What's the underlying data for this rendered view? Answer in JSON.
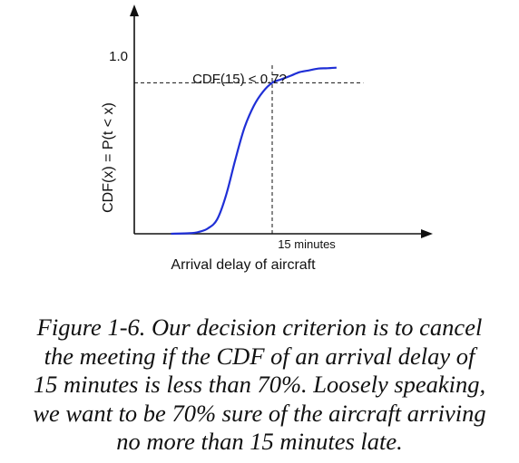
{
  "chart_data": {
    "type": "line",
    "title": "",
    "xlabel": "Arrival delay of aircraft",
    "ylabel": "CDF(x) = P(t < x)",
    "y_tick_label": "1.0",
    "x_tick_label": "15 minutes",
    "annotation": "CDF(15) < 0.7?",
    "ylim": [
      0,
      1.0
    ],
    "xlim": [
      0,
      30
    ],
    "threshold": {
      "x": 15,
      "y": 0.85
    },
    "series": [
      {
        "color": "#1f2fd6",
        "x": [
          4,
          6,
          7,
          8,
          9,
          10,
          11,
          12,
          13,
          14,
          15,
          16,
          17,
          18,
          19,
          20,
          21,
          22
        ],
        "y": [
          0.0,
          0.003,
          0.01,
          0.03,
          0.08,
          0.22,
          0.42,
          0.6,
          0.72,
          0.8,
          0.85,
          0.87,
          0.89,
          0.91,
          0.92,
          0.93,
          0.932,
          0.935
        ]
      }
    ],
    "grid": false,
    "axis_color": "#111111",
    "guide_style": "dashed"
  },
  "caption": {
    "lines": [
      "Figure 1-6. Our decision criterion is to cancel",
      "the meeting if the CDF of an arrival delay of",
      "15 minutes is less than 70%. Loosely speaking,",
      "we want to be 70% sure of the aircraft arriving",
      "no more than 15 minutes late."
    ]
  }
}
